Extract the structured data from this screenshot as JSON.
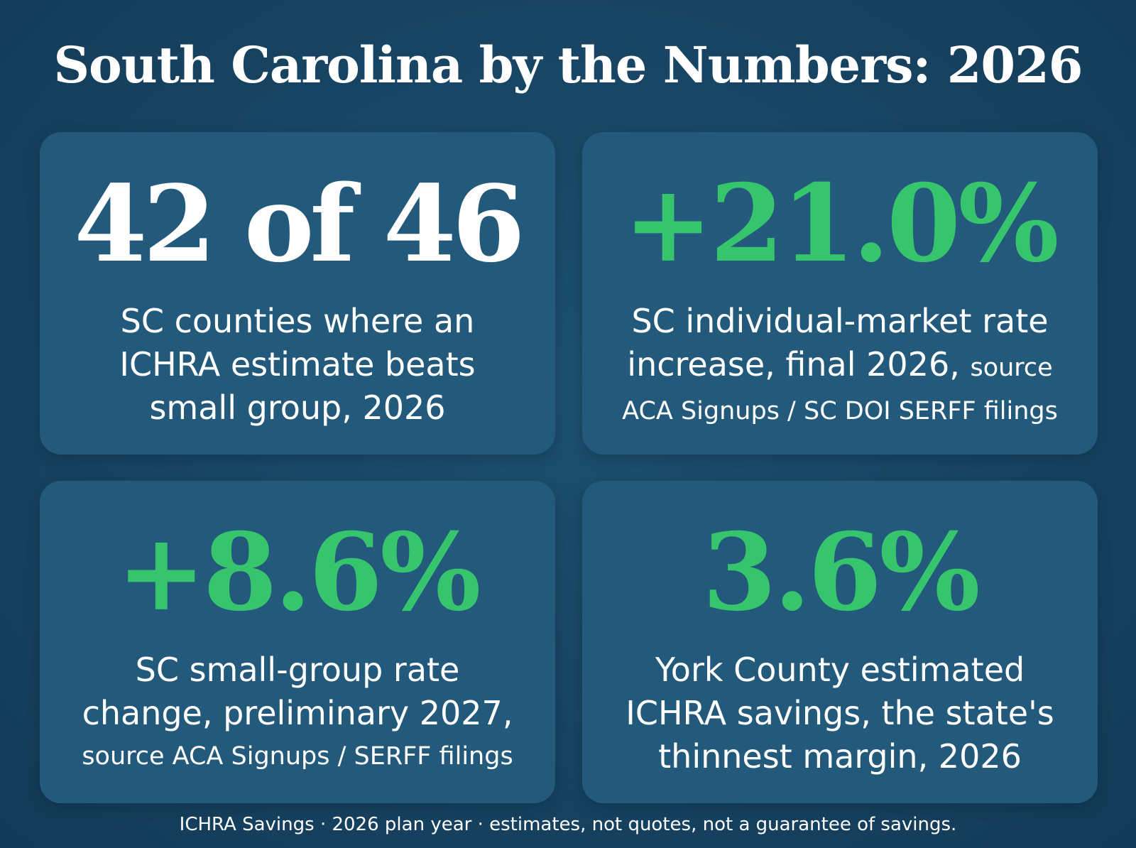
{
  "title": "South Carolina by the Numbers: 2026",
  "cards": [
    {
      "stat": "42 of 46",
      "stat_color": "#ffffff",
      "line1": "SC counties where an",
      "line2": "ICHRA estimate beats",
      "line3": "small group, 2026"
    },
    {
      "stat": "+21.0%",
      "stat_color": "#36c46d",
      "line1": "SC individual-market rate",
      "line2": "increase, final 2026,",
      "line2_small": "source",
      "line3": "ACA Signups / SC DOI SERFF filings"
    },
    {
      "stat": "+8.6%",
      "stat_color": "#36c46d",
      "line1": "SC small-group rate",
      "line2": "change, preliminary 2027,",
      "line3": "source ACA Signups / SERFF filings"
    },
    {
      "stat": "3.6%",
      "stat_color": "#36c46d",
      "line1": "York County estimated",
      "line2": "ICHRA savings, the state's",
      "line3": "thinnest margin, 2026"
    }
  ],
  "footer": "ICHRA Savings · 2026 plan year · estimates, not quotes, not a guarantee of savings.",
  "colors": {
    "background": "#174462",
    "card": "#235a7b",
    "accent_green": "#36c46d"
  }
}
